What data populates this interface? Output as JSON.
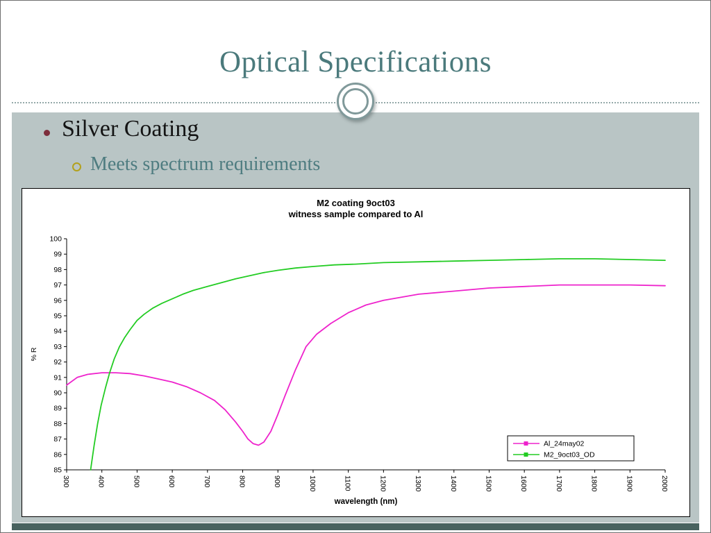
{
  "slide": {
    "title": "Optical Specifications",
    "bullet": "Silver Coating",
    "sub_bullet": "Meets spectrum requirements"
  },
  "chart_data": {
    "type": "line",
    "title_line1": "M2  coating 9oct03",
    "title_line2": "witness sample compared to Al",
    "xlabel": "wavelength (nm)",
    "ylabel": "% R",
    "xlim": [
      300,
      2000
    ],
    "ylim": [
      85,
      100
    ],
    "x_ticks": [
      300,
      400,
      500,
      600,
      700,
      800,
      900,
      1000,
      1100,
      1200,
      1300,
      1400,
      1500,
      1600,
      1700,
      1800,
      1900,
      2000
    ],
    "y_ticks": [
      85,
      86,
      87,
      88,
      89,
      90,
      91,
      92,
      93,
      94,
      95,
      96,
      97,
      98,
      99,
      100
    ],
    "grid": "off",
    "legend_position": "inside lower right",
    "series": [
      {
        "name": "Al_24may02",
        "color": "#ee22cc",
        "x": [
          300,
          330,
          360,
          400,
          440,
          480,
          520,
          560,
          600,
          640,
          680,
          720,
          750,
          780,
          800,
          815,
          830,
          845,
          860,
          880,
          900,
          920,
          950,
          980,
          1010,
          1050,
          1100,
          1150,
          1200,
          1300,
          1400,
          1500,
          1600,
          1700,
          1800,
          1900,
          2000
        ],
        "y": [
          90.5,
          91.0,
          91.2,
          91.3,
          91.3,
          91.25,
          91.1,
          90.9,
          90.7,
          90.4,
          90.0,
          89.5,
          88.9,
          88.1,
          87.5,
          87.0,
          86.7,
          86.6,
          86.8,
          87.5,
          88.6,
          89.8,
          91.5,
          93.0,
          93.8,
          94.5,
          95.2,
          95.7,
          96.0,
          96.4,
          96.6,
          96.8,
          96.9,
          97.0,
          97.0,
          97.0,
          96.95
        ]
      },
      {
        "name": "M2_9oct03_OD",
        "color": "#22cc22",
        "x": [
          368,
          378,
          388,
          398,
          410,
          422,
          435,
          450,
          465,
          480,
          500,
          520,
          545,
          570,
          600,
          630,
          660,
          700,
          740,
          780,
          820,
          860,
          900,
          950,
          1000,
          1060,
          1120,
          1200,
          1300,
          1400,
          1500,
          1600,
          1700,
          1800,
          1900,
          2000
        ],
        "y": [
          85.0,
          86.6,
          88.0,
          89.2,
          90.3,
          91.3,
          92.2,
          93.0,
          93.6,
          94.1,
          94.7,
          95.1,
          95.5,
          95.8,
          96.1,
          96.4,
          96.65,
          96.9,
          97.15,
          97.4,
          97.6,
          97.8,
          97.95,
          98.1,
          98.2,
          98.3,
          98.35,
          98.45,
          98.5,
          98.55,
          98.6,
          98.65,
          98.7,
          98.7,
          98.65,
          98.6
        ]
      }
    ]
  }
}
